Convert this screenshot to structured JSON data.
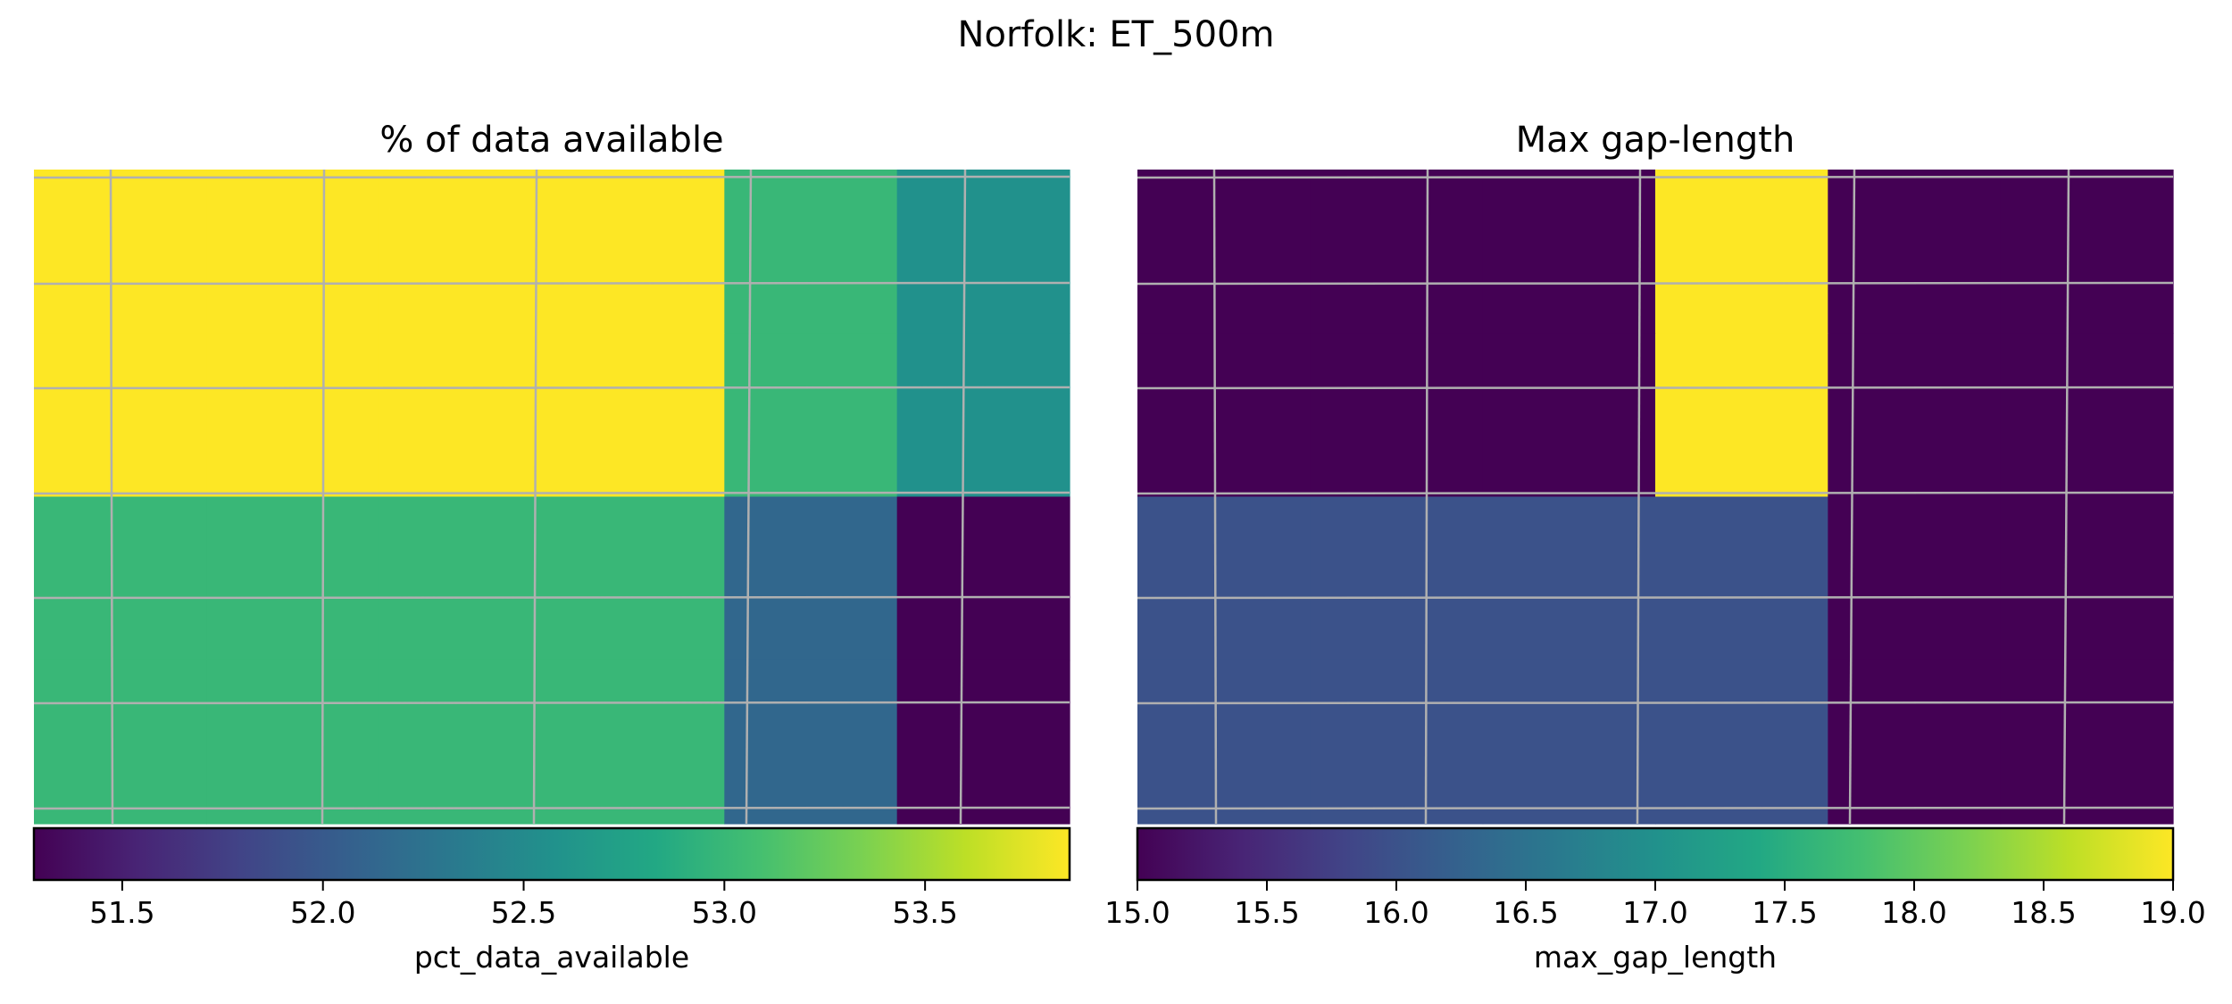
{
  "suptitle": "Norfolk: ET_500m",
  "colormap": "viridis",
  "grid_color": "#b0b0b0",
  "chart_data": [
    {
      "type": "heatmap",
      "title": "% of data available",
      "colorbar_label": "pct_data_available",
      "colorbar_orientation": "horizontal",
      "colorbar_range": [
        51.28,
        53.86
      ],
      "colorbar_ticks": [
        {
          "value": 51.5,
          "label": "51.5"
        },
        {
          "value": 52.0,
          "label": "52.0"
        },
        {
          "value": 52.5,
          "label": "52.5"
        },
        {
          "value": 53.0,
          "label": "53.0"
        },
        {
          "value": 53.5,
          "label": "53.5"
        }
      ],
      "axes_visible": false,
      "grid": true,
      "values": [
        [
          53.86,
          53.86,
          53.86,
          53.86,
          53.0,
          52.57
        ],
        [
          53.86,
          53.86,
          53.86,
          53.86,
          53.0,
          52.57
        ],
        [
          53.0,
          53.0,
          53.0,
          53.0,
          52.14,
          51.28
        ],
        [
          53.0,
          53.0,
          53.0,
          53.0,
          52.14,
          51.28
        ]
      ]
    },
    {
      "type": "heatmap",
      "title": "Max gap-length",
      "colorbar_label": "max_gap_length",
      "colorbar_orientation": "horizontal",
      "colorbar_range": [
        15.0,
        19.0
      ],
      "colorbar_ticks": [
        {
          "value": 15.0,
          "label": "15.0"
        },
        {
          "value": 15.5,
          "label": "15.5"
        },
        {
          "value": 16.0,
          "label": "16.0"
        },
        {
          "value": 16.5,
          "label": "16.5"
        },
        {
          "value": 17.0,
          "label": "17.0"
        },
        {
          "value": 17.5,
          "label": "17.5"
        },
        {
          "value": 18.0,
          "label": "18.0"
        },
        {
          "value": 18.5,
          "label": "18.5"
        },
        {
          "value": 19.0,
          "label": "19.0"
        }
      ],
      "axes_visible": false,
      "grid": true,
      "values": [
        [
          15.0,
          15.0,
          15.0,
          19.0,
          15.0,
          15.0
        ],
        [
          15.0,
          15.0,
          15.0,
          19.0,
          15.0,
          15.0
        ],
        [
          16.0,
          16.0,
          16.0,
          16.0,
          15.0,
          15.0
        ],
        [
          16.0,
          16.0,
          16.0,
          16.0,
          15.0,
          15.0
        ]
      ]
    }
  ]
}
